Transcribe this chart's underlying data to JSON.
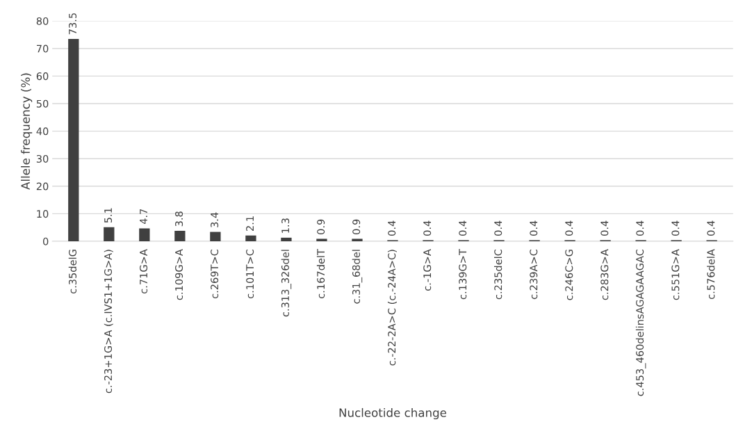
{
  "chart_data": {
    "type": "bar",
    "xlabel": "Nucleotide change",
    "ylabel": "Allele frequency (%)",
    "categories": [
      "c.35delG",
      "c.-23+1G>A (c.IVS1+1G>A)",
      "c.71G>A",
      "c.109G>A",
      "c.269T>C",
      "c.101T>C",
      "c.313_326del",
      "c.167delT",
      "c.31_68del",
      "c.-22-2A>C (c.-24A>C)",
      "c.-1G>A",
      "c.139G>T",
      "c.235delC",
      "c.239A>C",
      "c.246C>G",
      "c.283G>A",
      "c.453_460delinsAGAGAAGAC",
      "c.551G>A",
      "c.576delA"
    ],
    "values": [
      73.5,
      5.1,
      4.7,
      3.8,
      3.4,
      2.1,
      1.3,
      0.9,
      0.9,
      0.4,
      0.4,
      0.4,
      0.4,
      0.4,
      0.4,
      0.4,
      0.4,
      0.4,
      0.4
    ],
    "color": "#404040",
    "ylim": [
      0,
      80
    ],
    "yticks": [
      0,
      10,
      20,
      30,
      40,
      50,
      60,
      70,
      80
    ],
    "grid": "y",
    "data_labels": true,
    "legend": false
  }
}
